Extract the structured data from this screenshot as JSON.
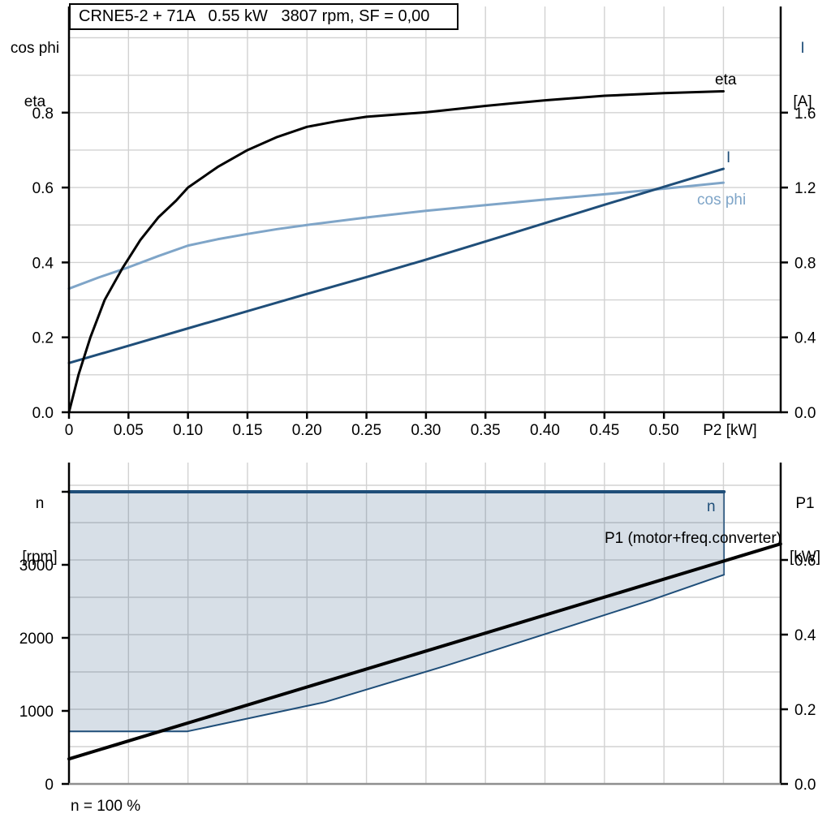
{
  "colors": {
    "dark_blue": "#1f4e79",
    "light_blue": "#7fa5c8",
    "black": "#000000",
    "grid": "#d2d2d2",
    "shade": "rgba(31,78,121,0.18)",
    "axis_gray": "#8f8f8f"
  },
  "footer": {
    "text": "n = 100 %"
  },
  "chart_data": [
    {
      "type": "line",
      "title": "CRNE5-2 + 71A   0.55 kW   3807 rpm, SF = 0,00",
      "x_axis": {
        "label": "P2 [kW]",
        "tick_labels": [
          "0",
          "0.05",
          "0.10",
          "0.15",
          "0.20",
          "0.25",
          "0.30",
          "0.35",
          "0.40",
          "0.45",
          "0.50"
        ],
        "tick_values": [
          0,
          0.05,
          0.1,
          0.15,
          0.2,
          0.25,
          0.3,
          0.35,
          0.4,
          0.45,
          0.5
        ],
        "extra_tick_values": [
          0.55
        ],
        "range": [
          0,
          0.598
        ],
        "grid_step": 0.05
      },
      "left_axis": {
        "label_line1": "cos phi",
        "label_line2": "eta",
        "tick_labels": [
          "0.0",
          "0.2",
          "0.4",
          "0.6",
          "0.8"
        ],
        "tick_values": [
          0,
          0.2,
          0.4,
          0.6,
          0.8
        ],
        "range": [
          0,
          1.083
        ],
        "grid_values": [
          0.1,
          0.2,
          0.3,
          0.4,
          0.5,
          0.6,
          0.7,
          0.8,
          0.9,
          1.0
        ]
      },
      "right_axis": {
        "label_line1": "I",
        "label_line2": "[A]",
        "tick_labels": [
          "0.0",
          "0.4",
          "0.8",
          "1.2",
          "1.6"
        ],
        "tick_values": [
          0,
          0.4,
          0.8,
          1.2,
          1.6
        ],
        "range": [
          0,
          2.167
        ]
      },
      "series": [
        {
          "name": "cos-phi",
          "label": "cos phi",
          "axis": "left",
          "color": "#7fa5c8",
          "width": 3,
          "points": [
            [
              0,
              0.33
            ],
            [
              0.025,
              0.36
            ],
            [
              0.05,
              0.387
            ],
            [
              0.075,
              0.417
            ],
            [
              0.1,
              0.445
            ],
            [
              0.125,
              0.462
            ],
            [
              0.15,
              0.476
            ],
            [
              0.175,
              0.489
            ],
            [
              0.2,
              0.5
            ],
            [
              0.25,
              0.52
            ],
            [
              0.3,
              0.538
            ],
            [
              0.35,
              0.553
            ],
            [
              0.4,
              0.568
            ],
            [
              0.45,
              0.582
            ],
            [
              0.5,
              0.597
            ],
            [
              0.55,
              0.613
            ]
          ]
        },
        {
          "name": "I",
          "label": "I",
          "axis": "right",
          "color": "#1f4e79",
          "width": 3,
          "points": [
            [
              0,
              0.263
            ],
            [
              0.05,
              0.355
            ],
            [
              0.1,
              0.448
            ],
            [
              0.15,
              0.54
            ],
            [
              0.2,
              0.632
            ],
            [
              0.25,
              0.722
            ],
            [
              0.3,
              0.815
            ],
            [
              0.35,
              0.912
            ],
            [
              0.4,
              1.01
            ],
            [
              0.45,
              1.108
            ],
            [
              0.5,
              1.204
            ],
            [
              0.55,
              1.3
            ]
          ]
        },
        {
          "name": "eta",
          "label": "eta",
          "axis": "left",
          "color": "#000000",
          "width": 3,
          "points": [
            [
              0,
              0
            ],
            [
              0.008,
              0.1
            ],
            [
              0.018,
              0.2
            ],
            [
              0.03,
              0.3
            ],
            [
              0.045,
              0.385
            ],
            [
              0.05,
              0.41
            ],
            [
              0.06,
              0.46
            ],
            [
              0.075,
              0.52
            ],
            [
              0.09,
              0.565
            ],
            [
              0.1,
              0.6
            ],
            [
              0.125,
              0.655
            ],
            [
              0.15,
              0.7
            ],
            [
              0.175,
              0.735
            ],
            [
              0.2,
              0.762
            ],
            [
              0.225,
              0.777
            ],
            [
              0.25,
              0.789
            ],
            [
              0.275,
              0.795
            ],
            [
              0.3,
              0.801
            ],
            [
              0.35,
              0.818
            ],
            [
              0.4,
              0.833
            ],
            [
              0.45,
              0.845
            ],
            [
              0.5,
              0.852
            ],
            [
              0.55,
              0.857
            ]
          ]
        }
      ]
    },
    {
      "type": "line+area",
      "x_axis": {
        "label": "",
        "tick_labels": [],
        "tick_values": [],
        "range": [
          0,
          0.598
        ],
        "grid_step": 0.05
      },
      "left_axis": {
        "label_line1": "n",
        "label_line2": "[rpm]",
        "tick_labels": [
          "0",
          "1000",
          "2000",
          "3000"
        ],
        "tick_values": [
          0,
          1000,
          2000,
          3000
        ],
        "extra_tick_values": [
          4000
        ],
        "range": [
          0,
          4400
        ]
      },
      "right_axis": {
        "label_line1": "P1",
        "label_line2": "[kW]",
        "tick_labels": [
          "0.0",
          "0.2",
          "0.4",
          "0.6"
        ],
        "tick_values": [
          0,
          0.2,
          0.4,
          0.6
        ],
        "range": [
          0,
          0.861
        ],
        "grid_values": [
          0.1,
          0.2,
          0.3,
          0.4,
          0.5,
          0.6,
          0.7,
          0.8
        ]
      },
      "series": [
        {
          "name": "n-min-boundary",
          "label": "",
          "axis": "left",
          "color": "#1f4e79",
          "width": 2,
          "points": [
            [
              0,
              720
            ],
            [
              0.0996,
              720
            ],
            [
              0.215,
              1120
            ],
            [
              0.317,
              1620
            ],
            [
              0.42,
              2155
            ],
            [
              0.488,
              2510
            ],
            [
              0.5505,
              2865
            ]
          ]
        },
        {
          "name": "P1",
          "label": "P1 (motor+freq.converter)",
          "axis": "right",
          "color": "#000000",
          "width": 4,
          "points": [
            [
              0,
              0.067
            ],
            [
              0.598,
              0.643
            ]
          ]
        },
        {
          "name": "n",
          "label": "n",
          "axis": "left",
          "color": "#1f4e79",
          "width": 4,
          "points": [
            [
              0,
              4000
            ],
            [
              0.5505,
              4000
            ]
          ]
        }
      ],
      "area": {
        "description": "allowed speed range between n max line and minimum-speed boundary",
        "top_series": 2,
        "bottom_series": 0
      },
      "annotation": "n = 100 %"
    }
  ]
}
